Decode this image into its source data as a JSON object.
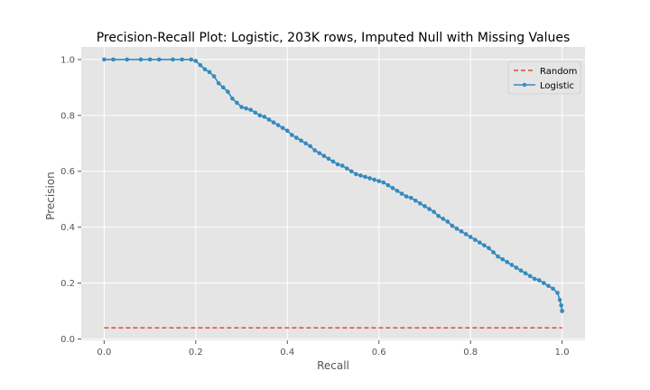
{
  "chart_data": {
    "type": "line",
    "title": "Precision-Recall Plot: Logistic, 203K rows, Imputed Null with Missing Values",
    "xlabel": "Recall",
    "ylabel": "Precision",
    "xlim": [
      -0.05,
      1.05
    ],
    "ylim": [
      -0.005,
      1.045
    ],
    "xticks": [
      0.0,
      0.2,
      0.4,
      0.6,
      0.8,
      1.0
    ],
    "xtick_labels": [
      "0.0",
      "0.2",
      "0.4",
      "0.6",
      "0.8",
      "1.0"
    ],
    "yticks": [
      0.0,
      0.2,
      0.4,
      0.6,
      0.8,
      1.0
    ],
    "ytick_labels": [
      "0.0",
      "0.2",
      "0.4",
      "0.6",
      "0.8",
      "1.0"
    ],
    "grid": true,
    "legend": "upper right",
    "series": [
      {
        "name": "Random",
        "style": "dashed",
        "color": "#e24a33",
        "x": [
          0.0,
          1.0
        ],
        "y": [
          0.04,
          0.04
        ]
      },
      {
        "name": "Logistic",
        "style": "solid-with-markers",
        "color": "#348abd",
        "x": [
          0.0,
          0.02,
          0.05,
          0.08,
          0.1,
          0.12,
          0.15,
          0.17,
          0.19,
          0.2,
          0.21,
          0.22,
          0.23,
          0.24,
          0.25,
          0.26,
          0.27,
          0.28,
          0.29,
          0.3,
          0.31,
          0.32,
          0.33,
          0.34,
          0.35,
          0.36,
          0.37,
          0.38,
          0.39,
          0.4,
          0.41,
          0.42,
          0.43,
          0.44,
          0.45,
          0.46,
          0.47,
          0.48,
          0.49,
          0.5,
          0.51,
          0.52,
          0.53,
          0.54,
          0.55,
          0.56,
          0.57,
          0.58,
          0.59,
          0.6,
          0.61,
          0.62,
          0.63,
          0.64,
          0.65,
          0.66,
          0.67,
          0.68,
          0.69,
          0.7,
          0.71,
          0.72,
          0.73,
          0.74,
          0.75,
          0.76,
          0.77,
          0.78,
          0.79,
          0.8,
          0.81,
          0.82,
          0.83,
          0.84,
          0.85,
          0.86,
          0.87,
          0.88,
          0.89,
          0.9,
          0.91,
          0.92,
          0.93,
          0.94,
          0.95,
          0.96,
          0.97,
          0.98,
          0.99,
          0.995,
          0.998,
          1.0,
          1.0
        ],
        "y": [
          1.0,
          1.0,
          1.0,
          1.0,
          1.0,
          1.0,
          1.0,
          1.0,
          1.0,
          0.995,
          0.98,
          0.965,
          0.955,
          0.94,
          0.915,
          0.9,
          0.885,
          0.86,
          0.845,
          0.83,
          0.825,
          0.82,
          0.81,
          0.8,
          0.795,
          0.785,
          0.775,
          0.765,
          0.755,
          0.745,
          0.73,
          0.72,
          0.71,
          0.7,
          0.69,
          0.675,
          0.665,
          0.655,
          0.645,
          0.635,
          0.625,
          0.62,
          0.61,
          0.6,
          0.59,
          0.585,
          0.58,
          0.575,
          0.57,
          0.565,
          0.56,
          0.55,
          0.54,
          0.53,
          0.52,
          0.51,
          0.505,
          0.495,
          0.485,
          0.475,
          0.465,
          0.455,
          0.44,
          0.43,
          0.42,
          0.405,
          0.395,
          0.385,
          0.375,
          0.365,
          0.355,
          0.345,
          0.335,
          0.325,
          0.31,
          0.295,
          0.285,
          0.275,
          0.265,
          0.255,
          0.245,
          0.235,
          0.225,
          0.215,
          0.21,
          0.2,
          0.19,
          0.18,
          0.165,
          0.14,
          0.12,
          0.1,
          0.1
        ]
      }
    ]
  }
}
